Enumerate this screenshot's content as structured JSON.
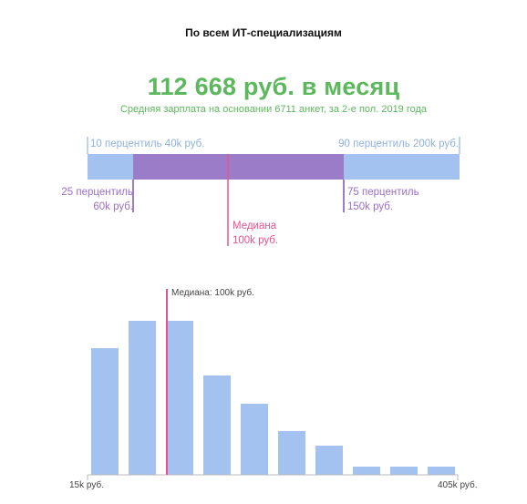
{
  "page_title": "По всем ИТ-специализациям",
  "headline": "112 668 руб. в месяц",
  "subline": "Средняя зарплата на основании 6711 анкет, за 2-е пол. 2019 года",
  "percentiles": {
    "p10_label": "10 перцентиль 40k руб.",
    "p90_label": "90 перцентиль 200k руб.",
    "p25_line1": "25 перцентиль",
    "p25_line2": "60k руб.",
    "p75_line1": "75 перцентиль",
    "p75_line2": "150k руб.",
    "median_line1": "Медиана",
    "median_line2": "100k руб."
  },
  "colors": {
    "green": "#5cb85c",
    "light_blue": "#a4c2ef",
    "purple": "#9b7cc9",
    "pink": "#e8528e"
  },
  "chart_data": {
    "type": "bar",
    "title": "",
    "median_label": "Медиана: 100k руб.",
    "x_min_label": "15k руб.",
    "x_max_label": "405k руб.",
    "xlim": [
      15,
      405
    ],
    "median": 100,
    "percentile_range": {
      "p10": 40,
      "p25": 60,
      "median": 100,
      "p75": 150,
      "p90": 200
    },
    "bins": [
      {
        "from": 15,
        "to": 55,
        "value": 139
      },
      {
        "from": 55,
        "to": 95,
        "value": 169
      },
      {
        "from": 95,
        "to": 135,
        "value": 169
      },
      {
        "from": 135,
        "to": 175,
        "value": 109
      },
      {
        "from": 175,
        "to": 215,
        "value": 78
      },
      {
        "from": 215,
        "to": 255,
        "value": 48
      },
      {
        "from": 255,
        "to": 295,
        "value": 32
      },
      {
        "from": 295,
        "to": 335,
        "value": 9
      },
      {
        "from": 335,
        "to": 375,
        "value": 9
      },
      {
        "from": 375,
        "to": 415,
        "value": 9
      }
    ],
    "ylim": [
      0,
      200
    ]
  }
}
